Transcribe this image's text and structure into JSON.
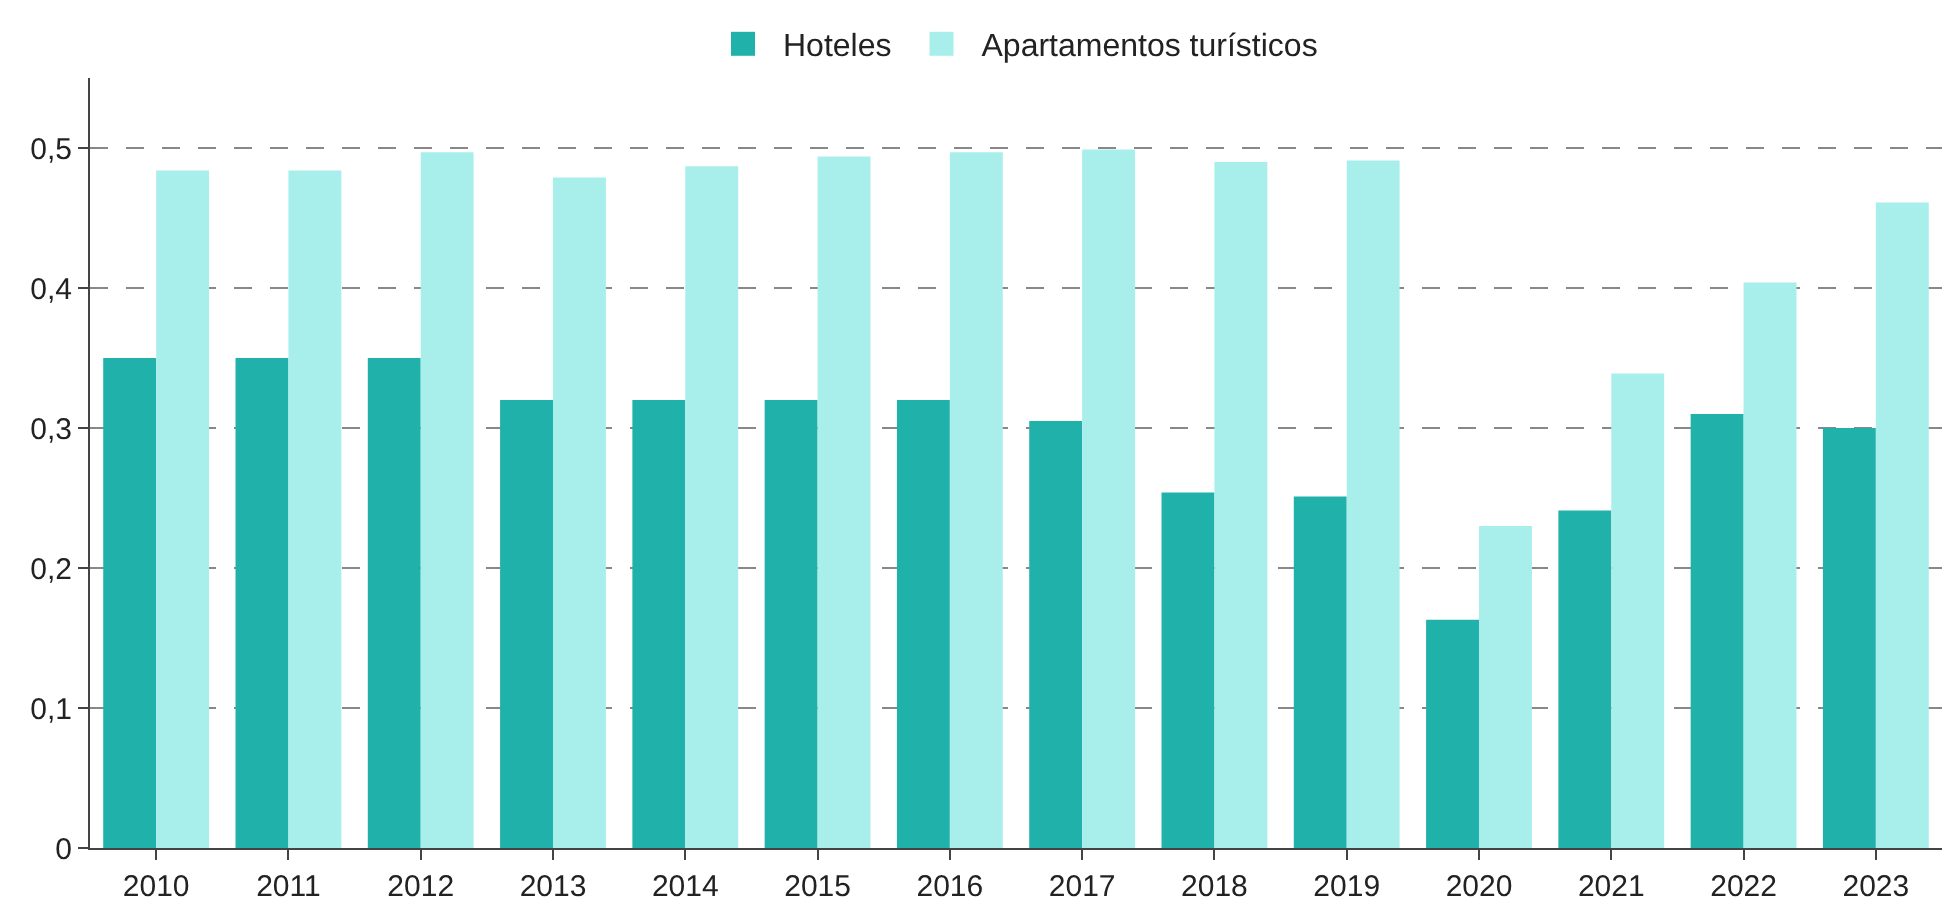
{
  "chart_data": {
    "type": "bar",
    "categories": [
      "2010",
      "2011",
      "2012",
      "2013",
      "2014",
      "2015",
      "2016",
      "2017",
      "2018",
      "2019",
      "2020",
      "2021",
      "2022",
      "2023"
    ],
    "series": [
      {
        "name": "Hoteles",
        "color": "#20b2aa",
        "values": [
          0.35,
          0.35,
          0.35,
          0.32,
          0.32,
          0.32,
          0.32,
          0.305,
          0.254,
          0.251,
          0.163,
          0.241,
          0.31,
          0.3
        ]
      },
      {
        "name": "Apartamentos turísticos",
        "color": "#a8efec",
        "values": [
          0.484,
          0.484,
          0.497,
          0.479,
          0.487,
          0.494,
          0.497,
          0.499,
          0.49,
          0.491,
          0.23,
          0.339,
          0.404,
          0.461
        ]
      }
    ],
    "ylim": [
      0,
      0.55
    ],
    "yticks": [
      0,
      {
        "value": 0.1,
        "label": "0,1"
      },
      {
        "value": 0.2,
        "label": "0,2"
      },
      {
        "value": 0.3,
        "label": "0,3"
      },
      {
        "value": 0.4,
        "label": "0,4"
      },
      {
        "value": 0.5,
        "label": "0,5"
      }
    ],
    "grid": "y",
    "line_style": "dashed",
    "legend": "top"
  }
}
